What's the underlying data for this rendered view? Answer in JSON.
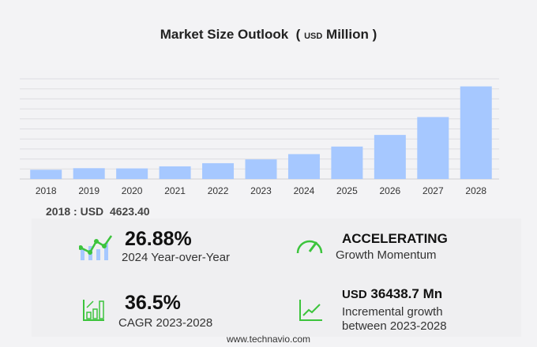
{
  "header": {
    "title": "Market Size Outlook",
    "unit_prefix": "USD",
    "unit": "Million"
  },
  "chart_data": {
    "type": "bar",
    "title": "Market Size Outlook (USD Million)",
    "categories": [
      "2018",
      "2019",
      "2020",
      "2021",
      "2022",
      "2023",
      "2024",
      "2025",
      "2026",
      "2027",
      "2028"
    ],
    "values": [
      4623.4,
      5410,
      5300,
      6320,
      7900,
      9800,
      12434,
      16200,
      22000,
      30930,
      46239
    ],
    "ylim": [
      0,
      50000
    ],
    "grid": true,
    "color": "#a6c8ff"
  },
  "base_year": {
    "label": "2018 : USD",
    "value": "4623.40"
  },
  "kpis": {
    "yoy": {
      "value": "26.88%",
      "label": "2024 Year-over-Year"
    },
    "momentum": {
      "value": "ACCELERATING",
      "label": "Growth Momentum"
    },
    "cagr": {
      "value": "36.5%",
      "label": "CAGR 2023-2028"
    },
    "incremental": {
      "prefix": "USD",
      "value": "36438.7 Mn",
      "label1": "Incremental growth",
      "label2": "between 2023-2028"
    }
  },
  "colors": {
    "accent_green": "#3cc43c",
    "bar": "#a6c8ff"
  },
  "footer": "www.technavio.com"
}
